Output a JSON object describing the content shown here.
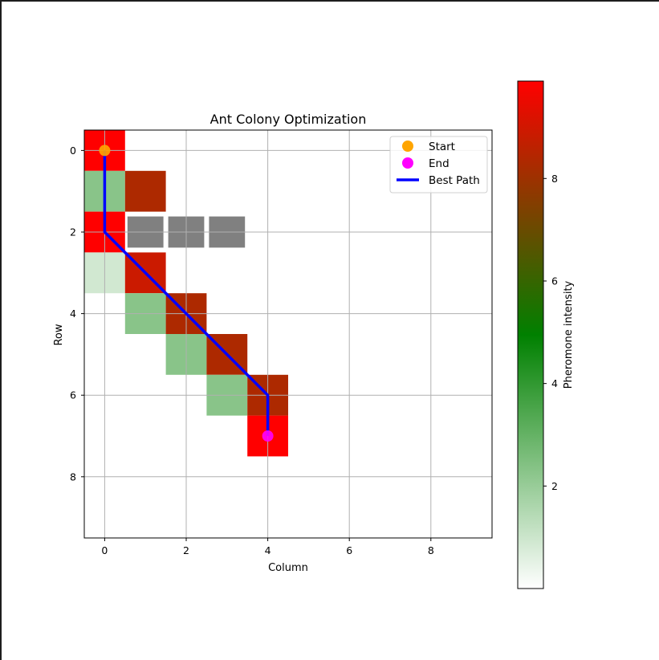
{
  "chart_data": {
    "type": "heatmap",
    "title": "Ant Colony Optimization",
    "xlabel": "Column",
    "ylabel": "Row",
    "xlim": [
      -0.5,
      9.5
    ],
    "ylim": [
      9.5,
      -0.5
    ],
    "xticks": [
      0,
      2,
      4,
      6,
      8
    ],
    "yticks": [
      0,
      2,
      4,
      6,
      8
    ],
    "grid": true,
    "colorbar": {
      "label": "Pheromone intensity",
      "range": [
        0,
        9.9
      ],
      "ticks": [
        2,
        4,
        6,
        8
      ],
      "colors": [
        "#ffffff",
        "#008000",
        "#ff0000"
      ]
    },
    "pheromone_cells": [
      {
        "row": 0,
        "col": 0,
        "value": 9.9
      },
      {
        "row": 1,
        "col": 0,
        "value": 2.3
      },
      {
        "row": 1,
        "col": 1,
        "value": 8.3
      },
      {
        "row": 2,
        "col": 0,
        "value": 9.9
      },
      {
        "row": 3,
        "col": 0,
        "value": 0.9
      },
      {
        "row": 3,
        "col": 1,
        "value": 8.9
      },
      {
        "row": 4,
        "col": 1,
        "value": 2.3
      },
      {
        "row": 4,
        "col": 2,
        "value": 8.3
      },
      {
        "row": 5,
        "col": 2,
        "value": 2.3
      },
      {
        "row": 5,
        "col": 3,
        "value": 8.3
      },
      {
        "row": 6,
        "col": 3,
        "value": 2.3
      },
      {
        "row": 6,
        "col": 4,
        "value": 8.3
      },
      {
        "row": 7,
        "col": 4,
        "value": 9.9
      }
    ],
    "obstacles": [
      {
        "row": 2,
        "col": 1
      },
      {
        "row": 2,
        "col": 2
      },
      {
        "row": 2,
        "col": 3
      }
    ],
    "obstacle_color": "#808080",
    "start": {
      "row": 0,
      "col": 0,
      "color": "#ffa500"
    },
    "end": {
      "row": 7,
      "col": 4,
      "color": "#ff00ff"
    },
    "best_path": {
      "color": "#0000ff",
      "points": [
        {
          "row": 0,
          "col": 0
        },
        {
          "row": 2,
          "col": 0
        },
        {
          "row": 6,
          "col": 4
        },
        {
          "row": 7,
          "col": 4
        }
      ]
    },
    "legend": {
      "position": "upper-right",
      "entries": [
        {
          "label": "Start",
          "marker": "circle",
          "color": "#ffa500"
        },
        {
          "label": "End",
          "marker": "circle",
          "color": "#ff00ff"
        },
        {
          "label": "Best Path",
          "marker": "line",
          "color": "#0000ff"
        }
      ]
    }
  }
}
